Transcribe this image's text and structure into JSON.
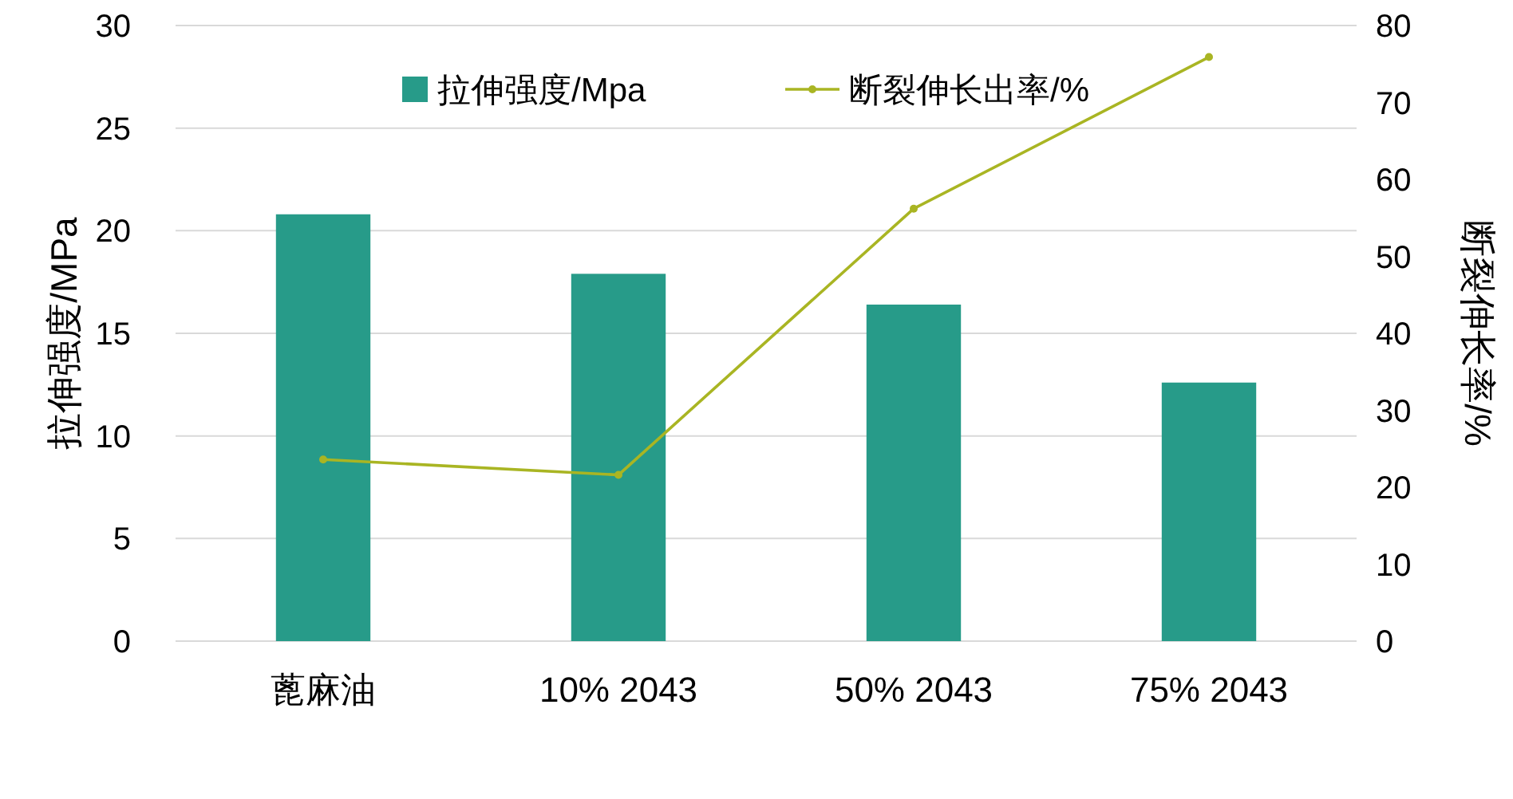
{
  "chart_data": {
    "type": "bar",
    "categories": [
      "蓖麻油",
      "10% 2043",
      "50% 2043",
      "75% 2043"
    ],
    "series": [
      {
        "name": "拉伸强度/Mpa",
        "color": "#279b89",
        "values": [
          20.8,
          17.9,
          16.4,
          12.6
        ]
      },
      {
        "name": "断裂伸长出率/%",
        "type": "line",
        "axis": "y2",
        "color": "#a9b523",
        "values": [
          23.6,
          21.6,
          56.2,
          75.9
        ]
      }
    ],
    "ylabel": "拉伸强度/MPa",
    "y2label": "断裂伸长率/%",
    "ylim": [
      0,
      30
    ],
    "yticks": [
      0,
      5,
      10,
      15,
      20,
      25,
      30
    ],
    "y2lim": [
      0,
      80
    ],
    "y2ticks": [
      0,
      10,
      20,
      30,
      40,
      50,
      60,
      70,
      80
    ],
    "grid": "y",
    "legend": "top",
    "marker": "circle",
    "line_style": "solid"
  }
}
